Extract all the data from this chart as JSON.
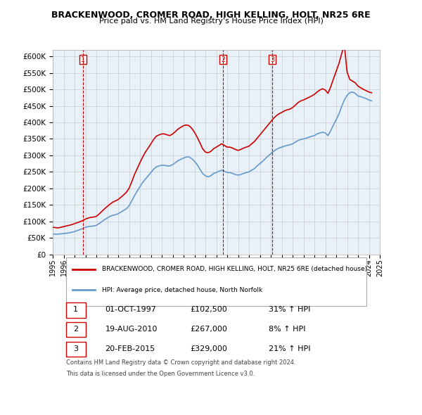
{
  "title": "BRACKENWOOD, CROMER ROAD, HIGH KELLING, HOLT, NR25 6RE",
  "subtitle": "Price paid vs. HM Land Registry's House Price Index (HPI)",
  "ylabel": "",
  "ylim": [
    0,
    620000
  ],
  "yticks": [
    0,
    50000,
    100000,
    150000,
    200000,
    250000,
    300000,
    350000,
    400000,
    450000,
    500000,
    550000,
    600000
  ],
  "legend_line1": "BRACKENWOOD, CROMER ROAD, HIGH KELLING, HOLT, NR25 6RE (detached house)",
  "legend_line2": "HPI: Average price, detached house, North Norfolk",
  "transactions": [
    {
      "num": 1,
      "date": "01-OCT-1997",
      "price": 102500,
      "pct": "31%",
      "dir": "↑",
      "x": 1997.75
    },
    {
      "num": 2,
      "date": "19-AUG-2010",
      "price": 267000,
      "pct": "8%",
      "dir": "↑",
      "x": 2010.63
    },
    {
      "num": 3,
      "date": "20-FEB-2015",
      "price": 329000,
      "pct": "21%",
      "dir": "↑",
      "x": 2015.13
    }
  ],
  "footer_line1": "Contains HM Land Registry data © Crown copyright and database right 2024.",
  "footer_line2": "This data is licensed under the Open Government Licence v3.0.",
  "red_color": "#cc0000",
  "blue_color": "#6699cc",
  "background_color": "#ffffff",
  "grid_color": "#cccccc",
  "hpi_data": {
    "years": [
      1995.0,
      1995.25,
      1995.5,
      1995.75,
      1996.0,
      1996.25,
      1996.5,
      1996.75,
      1997.0,
      1997.25,
      1997.5,
      1997.75,
      1998.0,
      1998.25,
      1998.5,
      1998.75,
      1999.0,
      1999.25,
      1999.5,
      1999.75,
      2000.0,
      2000.25,
      2000.5,
      2000.75,
      2001.0,
      2001.25,
      2001.5,
      2001.75,
      2002.0,
      2002.25,
      2002.5,
      2002.75,
      2003.0,
      2003.25,
      2003.5,
      2003.75,
      2004.0,
      2004.25,
      2004.5,
      2004.75,
      2005.0,
      2005.25,
      2005.5,
      2005.75,
      2006.0,
      2006.25,
      2006.5,
      2006.75,
      2007.0,
      2007.25,
      2007.5,
      2007.75,
      2008.0,
      2008.25,
      2008.5,
      2008.75,
      2009.0,
      2009.25,
      2009.5,
      2009.75,
      2010.0,
      2010.25,
      2010.5,
      2010.75,
      2011.0,
      2011.25,
      2011.5,
      2011.75,
      2012.0,
      2012.25,
      2012.5,
      2012.75,
      2013.0,
      2013.25,
      2013.5,
      2013.75,
      2014.0,
      2014.25,
      2014.5,
      2014.75,
      2015.0,
      2015.25,
      2015.5,
      2015.75,
      2016.0,
      2016.25,
      2016.5,
      2016.75,
      2017.0,
      2017.25,
      2017.5,
      2017.75,
      2018.0,
      2018.25,
      2018.5,
      2018.75,
      2019.0,
      2019.25,
      2019.5,
      2019.75,
      2020.0,
      2020.25,
      2020.5,
      2020.75,
      2021.0,
      2021.25,
      2021.5,
      2021.75,
      2022.0,
      2022.25,
      2022.5,
      2022.75,
      2023.0,
      2023.25,
      2023.5,
      2023.75,
      2024.0,
      2024.25
    ],
    "values": [
      62000,
      61000,
      61500,
      62000,
      63000,
      64000,
      65000,
      67000,
      69000,
      72000,
      75000,
      78000,
      82000,
      84000,
      85000,
      86000,
      88000,
      93000,
      99000,
      105000,
      110000,
      115000,
      118000,
      120000,
      123000,
      128000,
      133000,
      138000,
      147000,
      162000,
      178000,
      192000,
      205000,
      218000,
      228000,
      238000,
      248000,
      258000,
      265000,
      268000,
      270000,
      270000,
      268000,
      268000,
      272000,
      278000,
      284000,
      288000,
      292000,
      295000,
      295000,
      290000,
      282000,
      272000,
      258000,
      245000,
      238000,
      235000,
      238000,
      245000,
      248000,
      252000,
      255000,
      252000,
      248000,
      248000,
      245000,
      242000,
      240000,
      242000,
      245000,
      248000,
      250000,
      255000,
      260000,
      268000,
      275000,
      282000,
      290000,
      298000,
      305000,
      312000,
      318000,
      322000,
      325000,
      328000,
      330000,
      332000,
      335000,
      340000,
      345000,
      348000,
      350000,
      352000,
      355000,
      358000,
      360000,
      365000,
      368000,
      370000,
      368000,
      360000,
      375000,
      392000,
      408000,
      425000,
      448000,
      468000,
      482000,
      490000,
      492000,
      488000,
      480000,
      478000,
      475000,
      472000,
      468000,
      465000
    ]
  },
  "red_data": {
    "years": [
      1995.0,
      1995.25,
      1995.5,
      1995.75,
      1996.0,
      1996.25,
      1996.5,
      1996.75,
      1997.0,
      1997.25,
      1997.5,
      1997.75,
      1998.0,
      1998.25,
      1998.5,
      1998.75,
      1999.0,
      1999.25,
      1999.5,
      1999.75,
      2000.0,
      2000.25,
      2000.5,
      2000.75,
      2001.0,
      2001.25,
      2001.5,
      2001.75,
      2002.0,
      2002.25,
      2002.5,
      2002.75,
      2003.0,
      2003.25,
      2003.5,
      2003.75,
      2004.0,
      2004.25,
      2004.5,
      2004.75,
      2005.0,
      2005.25,
      2005.5,
      2005.75,
      2006.0,
      2006.25,
      2006.5,
      2006.75,
      2007.0,
      2007.25,
      2007.5,
      2007.75,
      2008.0,
      2008.25,
      2008.5,
      2008.75,
      2009.0,
      2009.25,
      2009.5,
      2009.75,
      2010.0,
      2010.25,
      2010.5,
      2010.75,
      2011.0,
      2011.25,
      2011.5,
      2011.75,
      2012.0,
      2012.25,
      2012.5,
      2012.75,
      2013.0,
      2013.25,
      2013.5,
      2013.75,
      2014.0,
      2014.25,
      2014.5,
      2014.75,
      2015.0,
      2015.25,
      2015.5,
      2015.75,
      2016.0,
      2016.25,
      2016.5,
      2016.75,
      2017.0,
      2017.25,
      2017.5,
      2017.75,
      2018.0,
      2018.25,
      2018.5,
      2018.75,
      2019.0,
      2019.25,
      2019.5,
      2019.75,
      2020.0,
      2020.25,
      2020.5,
      2020.75,
      2021.0,
      2021.25,
      2021.5,
      2021.75,
      2022.0,
      2022.25,
      2022.5,
      2022.75,
      2023.0,
      2023.25,
      2023.5,
      2023.75,
      2024.0,
      2024.25
    ],
    "values": [
      82000,
      81000,
      80000,
      82000,
      84000,
      86000,
      88000,
      90000,
      93000,
      96000,
      99000,
      102000,
      107000,
      110000,
      112000,
      113000,
      115000,
      122000,
      130000,
      138000,
      145000,
      152000,
      158000,
      162000,
      166000,
      173000,
      180000,
      188000,
      200000,
      220000,
      242000,
      260000,
      278000,
      295000,
      310000,
      322000,
      335000,
      348000,
      358000,
      362000,
      365000,
      365000,
      362000,
      360000,
      365000,
      372000,
      380000,
      385000,
      390000,
      392000,
      390000,
      382000,
      370000,
      355000,
      338000,
      320000,
      310000,
      308000,
      312000,
      320000,
      325000,
      330000,
      335000,
      330000,
      325000,
      325000,
      322000,
      318000,
      315000,
      318000,
      322000,
      325000,
      328000,
      335000,
      342000,
      352000,
      362000,
      372000,
      382000,
      392000,
      402000,
      412000,
      420000,
      426000,
      430000,
      435000,
      438000,
      440000,
      445000,
      452000,
      460000,
      465000,
      468000,
      472000,
      476000,
      480000,
      485000,
      492000,
      498000,
      502000,
      498000,
      488000,
      508000,
      532000,
      555000,
      578000,
      608000,
      635000,
      552000,
      530000,
      525000,
      520000,
      510000,
      505000,
      500000,
      496000,
      492000,
      490000
    ]
  }
}
